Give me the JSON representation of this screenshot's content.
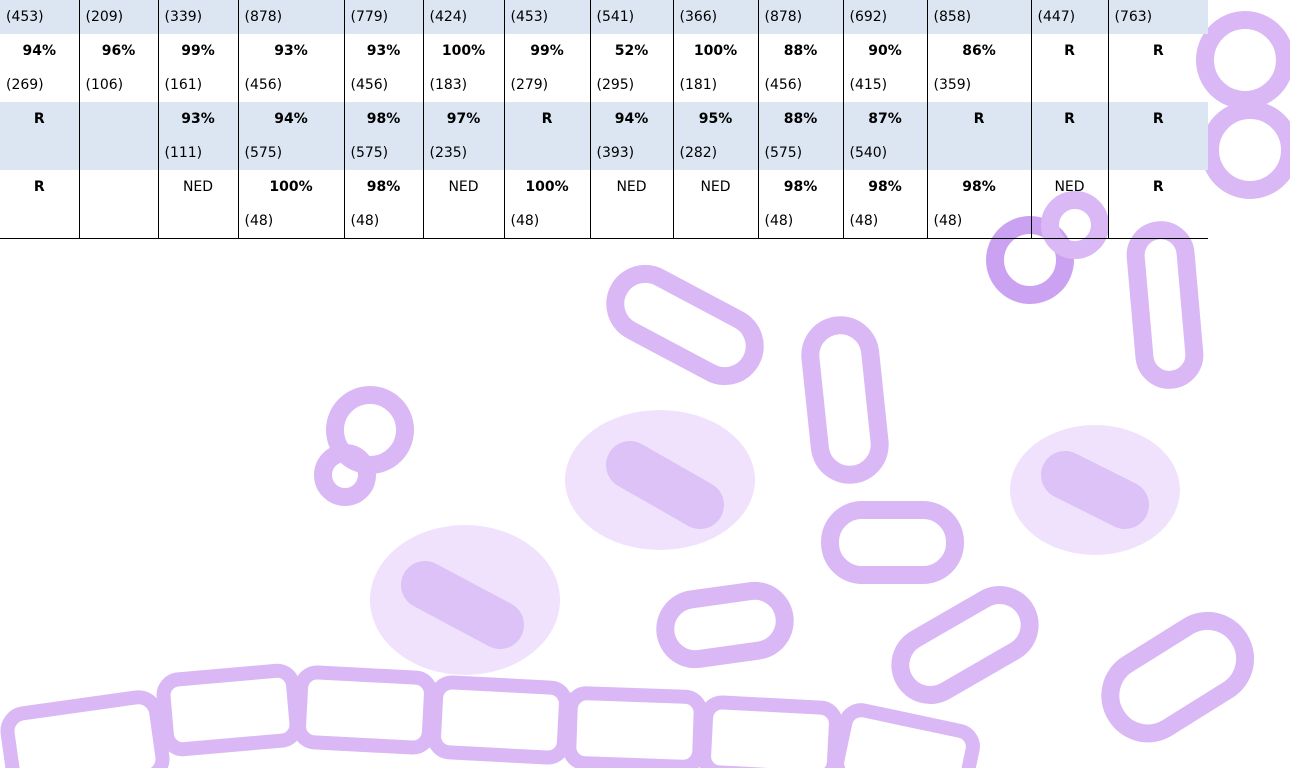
{
  "table": {
    "counts": [
      "(453)",
      "(209)",
      "(339)",
      "(878)",
      "(779)",
      "(424)",
      "(453)",
      "(541)",
      "(366)",
      "(878)",
      "(692)",
      "(858)",
      "(447)",
      "(763)"
    ],
    "rows": [
      [
        {
          "value": "94%",
          "count": "(269)"
        },
        {
          "value": "96%",
          "count": "(106)"
        },
        {
          "value": "99%",
          "count": "(161)"
        },
        {
          "value": "93%",
          "count": "(456)"
        },
        {
          "value": "93%",
          "count": "(456)"
        },
        {
          "value": "100%",
          "count": "(183)"
        },
        {
          "value": "99%",
          "count": "(279)"
        },
        {
          "value": "52%",
          "count": "(295)"
        },
        {
          "value": "100%",
          "count": "(181)"
        },
        {
          "value": "88%",
          "count": "(456)"
        },
        {
          "value": "90%",
          "count": "(415)"
        },
        {
          "value": "86%",
          "count": "(359)"
        },
        {
          "value": "R",
          "count": null
        },
        {
          "value": "R",
          "count": null
        }
      ],
      [
        {
          "value": "R",
          "count": null
        },
        {
          "value": null,
          "count": null
        },
        {
          "value": "93%",
          "count": "(111)"
        },
        {
          "value": "94%",
          "count": "(575)"
        },
        {
          "value": "98%",
          "count": "(575)"
        },
        {
          "value": "97%",
          "count": "(235)"
        },
        {
          "value": "R",
          "count": null
        },
        {
          "value": "94%",
          "count": "(393)"
        },
        {
          "value": "95%",
          "count": "(282)"
        },
        {
          "value": "88%",
          "count": "(575)"
        },
        {
          "value": "87%",
          "count": "(540)"
        },
        {
          "value": "R",
          "count": null
        },
        {
          "value": "R",
          "count": null
        },
        {
          "value": "R",
          "count": null
        }
      ],
      [
        {
          "value": "R",
          "count": null
        },
        {
          "value": null,
          "count": null
        },
        {
          "value": "NED",
          "count": null
        },
        {
          "value": "100%",
          "count": "(48)"
        },
        {
          "value": "98%",
          "count": "(48)"
        },
        {
          "value": "NED",
          "count": null
        },
        {
          "value": "100%",
          "count": "(48)"
        },
        {
          "value": "NED",
          "count": null
        },
        {
          "value": "NED",
          "count": null
        },
        {
          "value": "98%",
          "count": "(48)"
        },
        {
          "value": "98%",
          "count": "(48)"
        },
        {
          "value": "98%",
          "count": "(48)"
        },
        {
          "value": "NED",
          "count": null
        },
        {
          "value": "R",
          "count": null
        }
      ]
    ]
  }
}
